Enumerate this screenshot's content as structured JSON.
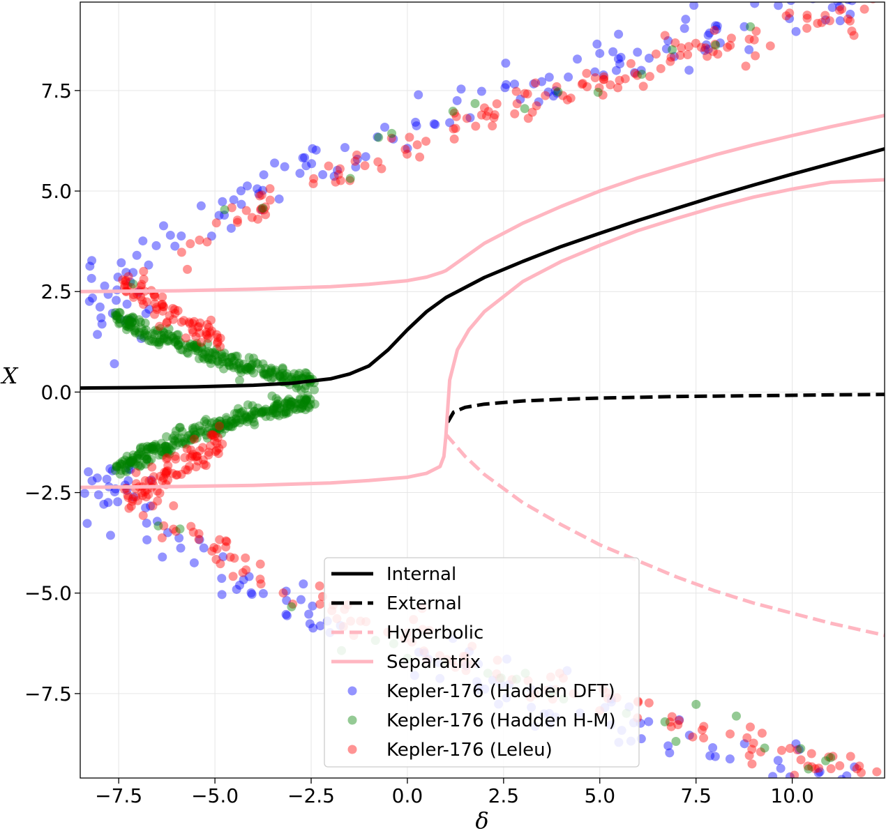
{
  "chart_data": {
    "type": "scatter",
    "title": "",
    "xlabel": "δ",
    "ylabel": "X",
    "xlim": [
      -8.5,
      12.4
    ],
    "ylim": [
      -9.6,
      9.7
    ],
    "grid": true,
    "legend_placement": "bottom-center",
    "x_ticks": [
      -7.5,
      -5.0,
      -2.5,
      0.0,
      2.5,
      5.0,
      7.5,
      10.0
    ],
    "x_tick_labels": [
      "−7.5",
      "−5.0",
      "−2.5",
      "0.0",
      "2.5",
      "5.0",
      "7.5",
      "10.0"
    ],
    "y_ticks": [
      -7.5,
      -5.0,
      -2.5,
      0.0,
      2.5,
      5.0,
      7.5
    ],
    "y_tick_labels": [
      "−7.5",
      "−5.0",
      "−2.5",
      "0.0",
      "2.5",
      "5.0",
      "7.5"
    ],
    "lines": [
      {
        "name": "Internal",
        "color": "#000000",
        "style": "solid",
        "x": [
          -8.5,
          -7.0,
          -5.5,
          -4.0,
          -3.0,
          -2.0,
          -1.5,
          -1.0,
          -0.5,
          0.0,
          0.5,
          1.0,
          2.0,
          3.0,
          4.0,
          5.0,
          6.0,
          7.0,
          8.0,
          9.0,
          10.0,
          11.0,
          12.4
        ],
        "y": [
          0.1,
          0.11,
          0.13,
          0.17,
          0.22,
          0.33,
          0.45,
          0.65,
          1.05,
          1.55,
          2.0,
          2.35,
          2.85,
          3.25,
          3.62,
          3.95,
          4.27,
          4.57,
          4.87,
          5.15,
          5.42,
          5.68,
          6.05
        ]
      },
      {
        "name": "External",
        "color": "#000000",
        "style": "dashed",
        "x": [
          1.05,
          1.2,
          1.5,
          2.0,
          3.0,
          4.0,
          5.0,
          6.0,
          7.0,
          8.0,
          9.0,
          10.0,
          11.0,
          12.4
        ],
        "y": [
          -0.75,
          -0.5,
          -0.38,
          -0.3,
          -0.22,
          -0.18,
          -0.15,
          -0.13,
          -0.11,
          -0.1,
          -0.09,
          -0.08,
          -0.07,
          -0.06
        ]
      },
      {
        "name": "Hyperbolic",
        "color": "#ffb6c1",
        "style": "dashed",
        "x": [
          1.0,
          1.5,
          2.0,
          3.0,
          4.0,
          5.0,
          6.0,
          7.0,
          8.0,
          9.0,
          10.0,
          11.0,
          12.4
        ],
        "y": [
          -1.05,
          -1.6,
          -2.05,
          -2.75,
          -3.3,
          -3.8,
          -4.2,
          -4.6,
          -4.95,
          -5.25,
          -5.5,
          -5.75,
          -6.05
        ]
      },
      {
        "name": "Separatrix",
        "color": "#ffb6c1",
        "style": "solid",
        "x": [
          -8.5,
          -6.0,
          -4.0,
          -2.0,
          -1.0,
          0.0,
          0.5,
          0.9,
          1.0,
          2.0,
          3.0,
          4.0,
          5.0,
          6.0,
          7.0,
          8.0,
          9.0,
          10.0,
          11.0,
          12.4
        ],
        "y": [
          2.5,
          2.52,
          2.56,
          2.62,
          2.68,
          2.77,
          2.86,
          2.98,
          3.02,
          3.7,
          4.2,
          4.62,
          5.0,
          5.33,
          5.62,
          5.9,
          6.15,
          6.38,
          6.6,
          6.88
        ]
      },
      {
        "name": "",
        "color": "#ffb6c1",
        "style": "solid",
        "x": [
          -8.5,
          -6.0,
          -4.0,
          -2.0,
          -1.0,
          0.0,
          0.5,
          0.85,
          0.95,
          1.0,
          1.1,
          1.3,
          1.6,
          2.0,
          3.0,
          4.0,
          5.0,
          6.0,
          7.0,
          8.0,
          9.0,
          10.0,
          11.0,
          12.4
        ],
        "y": [
          -2.37,
          -2.35,
          -2.32,
          -2.26,
          -2.2,
          -2.12,
          -2.02,
          -1.85,
          -1.6,
          -1.1,
          0.3,
          1.05,
          1.55,
          2.0,
          2.75,
          3.25,
          3.65,
          4.02,
          4.32,
          4.6,
          4.85,
          5.05,
          5.22,
          5.28
        ]
      }
    ],
    "series": [
      {
        "name": "Kepler-176 (Hadden DFT)",
        "color": "#0000ff",
        "n_points": 220,
        "description_branch": "outer parabola-like branch X ≈ ±sqrt(3.7·(δ+8.7)) and inner branches at δ < -6"
      },
      {
        "name": "Kepler-176 (Hadden H-M)",
        "color": "#008000",
        "n_points": 520,
        "description_branch": "dense inner branches converging to X≈0.2 at δ≈-2.4"
      },
      {
        "name": "Kepler-176 (Leleu)",
        "color": "#ff0000",
        "n_points": 420,
        "description_branch": "outer branches and inner branches near δ≈-7 to -5"
      }
    ],
    "legend": [
      {
        "label": "Internal",
        "kind": "line",
        "color": "#000000",
        "style": "solid"
      },
      {
        "label": "External",
        "kind": "line",
        "color": "#000000",
        "style": "dashed"
      },
      {
        "label": "Hyperbolic",
        "kind": "line",
        "color": "#ffb6c1",
        "style": "dashed"
      },
      {
        "label": "Separatrix",
        "kind": "line",
        "color": "#ffb6c1",
        "style": "solid"
      },
      {
        "label": "Kepler-176 (Hadden DFT)",
        "kind": "marker",
        "color": "#0000ff"
      },
      {
        "label": "Kepler-176 (Hadden H-M)",
        "kind": "marker",
        "color": "#008000"
      },
      {
        "label": "Kepler-176 (Leleu)",
        "kind": "marker",
        "color": "#ff0000"
      }
    ]
  }
}
